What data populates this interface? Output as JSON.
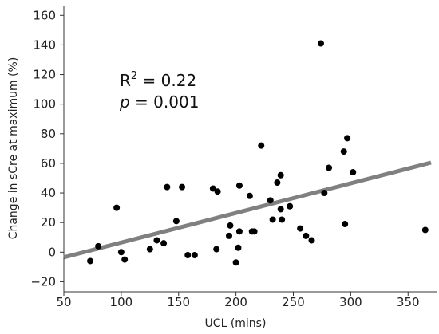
{
  "chart_data": {
    "type": "scatter",
    "xlabel": "UCL (mins)",
    "ylabel": "Change in sCre at maximum (%)",
    "xlim": [
      50,
      370
    ],
    "ylim": [
      -30,
      165
    ],
    "x_ticks": [
      50,
      100,
      150,
      200,
      250,
      300,
      350
    ],
    "x_tick_labels": [
      "50",
      "100",
      "150",
      "200",
      "250",
      "300",
      "350"
    ],
    "y_ticks": [
      -20,
      0,
      20,
      40,
      60,
      80,
      100,
      120,
      140,
      160
    ],
    "y_tick_labels": [
      "−20",
      "0",
      "20",
      "40",
      "60",
      "80",
      "100",
      "120",
      "140",
      "160"
    ],
    "grid": false,
    "annotation": {
      "r2_prefix": "R",
      "r2_sup": "2",
      "r2_value": " = 0.22",
      "p_label": "p",
      "p_value": " = 0.001"
    },
    "regression": {
      "x": [
        50,
        370
      ],
      "y": [
        -3.5,
        60.5
      ],
      "color": "#808080"
    },
    "point_color": "#000000",
    "points": [
      [
        73,
        -6
      ],
      [
        80,
        4
      ],
      [
        96,
        30
      ],
      [
        100,
        0
      ],
      [
        103,
        -5
      ],
      [
        125,
        2
      ],
      [
        131,
        8
      ],
      [
        137,
        6
      ],
      [
        140,
        44
      ],
      [
        148,
        21
      ],
      [
        153,
        44
      ],
      [
        158,
        -2
      ],
      [
        164,
        -2
      ],
      [
        180,
        43
      ],
      [
        183,
        2
      ],
      [
        184,
        41
      ],
      [
        195,
        18
      ],
      [
        194,
        11
      ],
      [
        200,
        -7
      ],
      [
        202,
        3
      ],
      [
        203,
        14
      ],
      [
        203,
        45
      ],
      [
        212,
        38
      ],
      [
        214,
        14
      ],
      [
        216,
        14
      ],
      [
        222,
        72
      ],
      [
        230,
        35
      ],
      [
        232,
        22
      ],
      [
        236,
        47
      ],
      [
        239,
        52
      ],
      [
        239,
        29
      ],
      [
        240,
        22
      ],
      [
        247,
        31
      ],
      [
        256,
        16
      ],
      [
        261,
        11
      ],
      [
        266,
        8
      ],
      [
        274,
        141
      ],
      [
        277,
        40
      ],
      [
        281,
        57
      ],
      [
        294,
        68
      ],
      [
        295,
        19
      ],
      [
        297,
        77
      ],
      [
        302,
        54
      ],
      [
        365,
        15
      ]
    ]
  }
}
